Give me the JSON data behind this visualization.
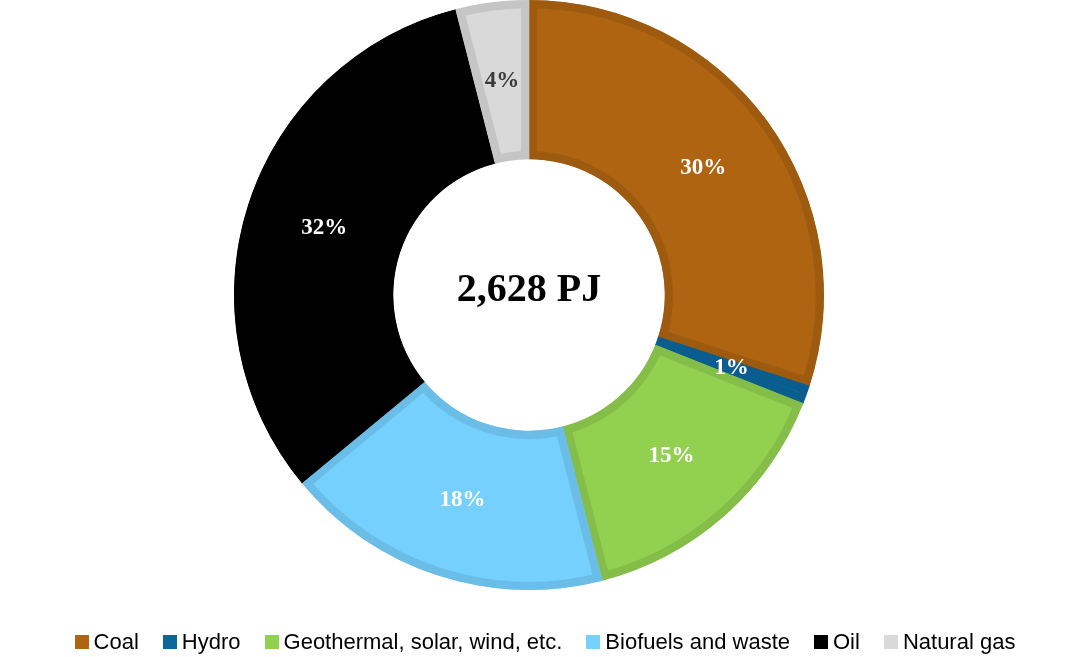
{
  "chart_data": {
    "type": "donut",
    "categories": [
      "Coal",
      "Hydro",
      "Geothermal, solar, wind, etc.",
      "Biofuels and waste",
      "Oil",
      "Natural gas"
    ],
    "values": [
      30,
      1,
      15,
      18,
      32,
      4
    ],
    "colors": [
      "#ae6410",
      "#0b669c",
      "#92d050",
      "#75d0fd",
      "#000000",
      "#d9d9d9"
    ],
    "value_labels": [
      "30%",
      "1%",
      "15%",
      "18%",
      "32%",
      "4%"
    ],
    "annotations": [
      "2,628 PJ"
    ],
    "legend": "bottom"
  }
}
